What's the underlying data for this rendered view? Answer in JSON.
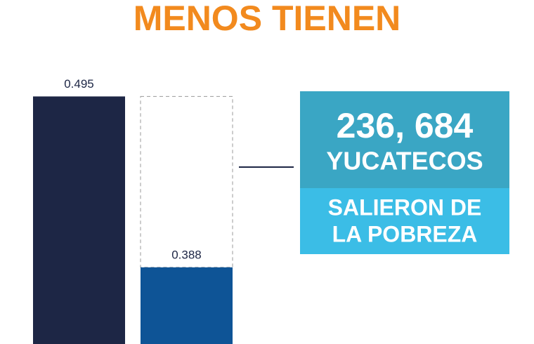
{
  "chart_data": {
    "type": "bar",
    "title": "MENOS TIENEN",
    "categories": [
      null,
      null
    ],
    "values": [
      0.495,
      0.388
    ],
    "colors": [
      "#1d2645",
      "#0e5496"
    ],
    "ylim": [
      0.34,
      0.5
    ],
    "annotations": [
      "236, 684",
      "YUCATECOS",
      "SALIERON DE",
      "LA POBREZA"
    ]
  }
}
